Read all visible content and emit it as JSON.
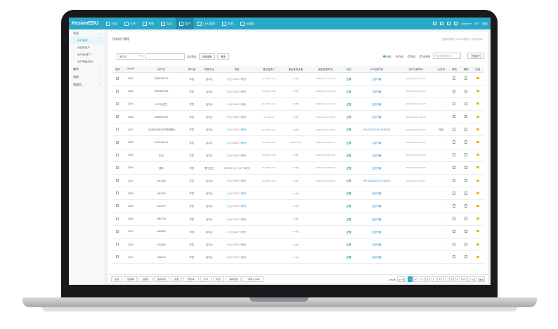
{
  "app": {
    "logo": "KesionEDU",
    "nav": [
      {
        "label": "内容",
        "icon": "grid-icon"
      },
      {
        "label": "订单",
        "icon": "clipboard-icon"
      },
      {
        "label": "营销",
        "icon": "tag-icon"
      },
      {
        "label": "互动",
        "icon": "chat-icon"
      },
      {
        "label": "用户",
        "icon": "user-icon",
        "active": true
      },
      {
        "label": "CRM管理",
        "icon": "people-icon"
      },
      {
        "label": "配置",
        "icon": "gear-icon"
      },
      {
        "label": "云服务",
        "icon": "cloud-icon"
      }
    ],
    "top_right": {
      "user": "admin ▾",
      "lang": "EN",
      "logout": "退出"
    }
  },
  "sidebar": {
    "groups": [
      {
        "label": "学员",
        "expanded": true,
        "items": [
          "用户管理",
          "添加新用户",
          "用户组/部门",
          "用户等级/积分"
        ]
      },
      {
        "label": "教师",
        "expanded": false,
        "items": []
      },
      {
        "label": "机构",
        "expanded": false,
        "items": []
      },
      {
        "label": "管理员",
        "expanded": false,
        "items": []
      }
    ]
  },
  "main": {
    "breadcrumb": "所有用户管理",
    "hint": "当前共有用户 2, 24 余额共计: 24 积分共计",
    "filter": {
      "field": "用户名",
      "adv_link": "高级搜索 ",
      "start_btn": "开始搜索",
      "filter_btn": "筛选",
      "radios": [
        "全部",
        "在线",
        "禁用",
        "待审核"
      ],
      "radio_selected": 0,
      "date_placeholder": "开始和结束时间",
      "export_btn": "开始执行"
    },
    "columns": [
      "选择",
      "UserID",
      "用户名",
      "用户组",
      "所属平台",
      "财富",
      "最后登录IP",
      "最后登录设备",
      "最后登录时间",
      "状态",
      "VIP有效时间",
      "用户注册时间",
      "业务员",
      "修改",
      "删除",
      "充值"
    ],
    "rows": [
      {
        "id": "2862",
        "name": "15880100163",
        "group": "学员",
        "plat": "自平台",
        "money": "0.元",
        "score": "0.00",
        "unit": "个/积分",
        "ip": "192.168.1.101",
        "dev": "PC端",
        "time": "2020/12/21 15:41:30",
        "status": "正常",
        "vip": "立即开通",
        "reg": "2020/12/21 15:41:30",
        "sales": "-"
      },
      {
        "id": "2861",
        "name": "19930670089",
        "group": "学员",
        "plat": "自平台",
        "money": "0.元",
        "score": "0.00",
        "unit": "个/积分",
        "ip": "192.168.1.100",
        "dev": "PC端",
        "time": "2020/12/21 10:44:20",
        "status": "正常",
        "vip": "立即开通",
        "reg": "2020/12/21 10:44:20",
        "sales": "-"
      },
      {
        "id": "2860",
        "name": "1227测试生",
        "group": "学员",
        "plat": "自平台",
        "money": "0.元",
        "score": "0.00",
        "unit": "个/积分",
        "ip": "192.168.1.134",
        "dev": "PC端",
        "time": "2020/12/21 10:44:07",
        "status": "正常",
        "vip": "立即开通",
        "reg": "2020/12/21 10:44:07",
        "sales": "-"
      },
      {
        "id": "2858",
        "name": "13654029251",
        "group": "学员",
        "plat": "自平台",
        "money": "0.元",
        "score": "0.00",
        "unit": "个/积分",
        "ip": "192.168.1.2",
        "dev": "PC端",
        "time": "2020/12/18 17:06:26",
        "status": "正常",
        "vip": "立即开通",
        "reg": "2020/12/18 17:06:26",
        "sales": "-"
      },
      {
        "id": "2857",
        "name": "13436800482(已开机器码)",
        "group": "学员",
        "plat": "自平台",
        "money": "0.元",
        "score": "0.00",
        "unit": "个/积分",
        "ip": "192.168.1.134",
        "dev": "PC端",
        "time": "2020/12/15 17:06:30",
        "status": "正常",
        "vip": "VIP (2021/12/15 15:46:20)",
        "reg": "2020/12/15 15:46:23",
        "sales": "晓晓"
      },
      {
        "id": "2853",
        "name": "10101010101",
        "group": "学员",
        "plat": "自平台",
        "money": "0.元",
        "score": "0.00",
        "unit": "个/积分",
        "ip": "192.168.1.196",
        "dev": "WINDOWS",
        "time": "2020/12/16 16:44:07",
        "status": "正常",
        "vip": "立即开通",
        "reg": "2020/12/16 16:43:02",
        "sales": "-"
      },
      {
        "id": "2852",
        "name": "生活",
        "group": "学员",
        "plat": "自平台",
        "money": "0.元",
        "score": "0.00",
        "unit": "个/积分",
        "ip": "192.168.1.196",
        "dev": "PC端",
        "time": "2020/12/16 16:44:05",
        "status": "正常",
        "vip": "立即开通",
        "reg": "2019/12/01 16:44:05",
        "sales": "-"
      },
      {
        "id": "2850",
        "name": "钱钱",
        "group": "学员",
        "plat": "厦门自己",
        "money": "9999.99.元",
        "score": "0.00",
        "unit": "个/积分",
        "ip": "192.168.1.152",
        "dev": "PC端",
        "time": "2020/12/15 15:08:49",
        "status": "正常",
        "vip": "立即开通",
        "reg": "2019/12/01 15:08:49",
        "sales": "-",
        "green_money": true
      },
      {
        "id": "2847",
        "name": "v441269",
        "group": "学员",
        "plat": "自平台",
        "money": "0.元",
        "score": "0.00",
        "unit": "个/积分",
        "ip": "192.168.1.152",
        "dev": "PC端",
        "time": "2020/12/15 12:08:49",
        "status": "正常",
        "vip": "VIP (2022/11/20 17:46:41)",
        "reg": "2020/12/11 11:36:41",
        "sales": "-"
      },
      {
        "id": "2846",
        "name": "v661105",
        "group": "学员",
        "plat": "自平台",
        "money": "0.元",
        "score": "0.00",
        "unit": "个/积分",
        "ip": "",
        "dev": "PC端",
        "time": "",
        "status": "正常",
        "vip": "立即开通",
        "reg": "",
        "sales": "-"
      },
      {
        "id": "2845",
        "name": "v443072",
        "group": "学员",
        "plat": "自平台",
        "money": "0.元",
        "score": "0.00",
        "unit": "个/积分",
        "ip": "",
        "dev": "PC端",
        "time": "",
        "status": "正常",
        "vip": "立即开通",
        "reg": "",
        "sales": "-"
      },
      {
        "id": "2844",
        "name": "v985728",
        "group": "学员",
        "plat": "自平台",
        "money": "0.元",
        "score": "0.00",
        "unit": "个/积分",
        "ip": "",
        "dev": "PC端",
        "time": "",
        "status": "正常",
        "vip": "立即开通",
        "reg": "",
        "sales": "-"
      },
      {
        "id": "2843",
        "name": "v858658",
        "group": "学员",
        "plat": "自平台",
        "money": "0.元",
        "score": "0.00",
        "unit": "个/积分",
        "ip": "",
        "dev": "PC端",
        "time": "",
        "status": "正常",
        "vip": "立即开通",
        "reg": "",
        "sales": "-"
      },
      {
        "id": "2842",
        "name": "v130585",
        "group": "学员",
        "plat": "自平台",
        "money": "0.元",
        "score": "0.00",
        "unit": "个/积分",
        "ip": "",
        "dev": "PC端",
        "time": "",
        "status": "正常",
        "vip": "立即开通",
        "reg": "",
        "sales": "-"
      },
      {
        "id": "2841",
        "name": "v958040",
        "group": "学员",
        "plat": "自平台",
        "money": "0.元",
        "score": "0.00",
        "unit": "个/积分",
        "ip": "",
        "dev": "PC端",
        "time": "",
        "status": "正常",
        "vip": "立即开通",
        "reg": "",
        "sales": "-"
      }
    ]
  },
  "bottom": {
    "actions": [
      "全选",
      "批量审",
      "加锁定",
      "加到内页",
      "批量",
      "开通VIP",
      "打印",
      "导出",
      "请新批准",
      "一键导入CRM"
    ],
    "total": "4058条",
    "prev": "上一页",
    "pages": [
      "1",
      "2",
      "3",
      "4",
      "5",
      "6",
      "7",
      "8",
      "9",
      "10"
    ],
    "current_page": "1",
    "next": "下一页",
    "last": "末页"
  }
}
